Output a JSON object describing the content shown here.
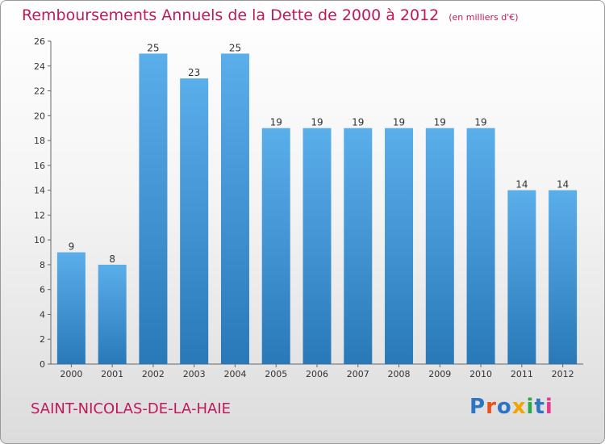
{
  "title": "Remboursements Annuels de la Dette de 2000 à 2012",
  "unit_note": "(en milliers d'€)",
  "commune": "SAINT-NICOLAS-DE-LA-HAIE",
  "logo": {
    "letters": [
      "P",
      "r",
      "o",
      "x",
      "i",
      "t",
      "i"
    ],
    "colors": [
      "#2e74c4",
      "#e8501c",
      "#2e74c4",
      "#f0a500",
      "#2aa84a",
      "#2e74c4",
      "#e23b8a"
    ]
  },
  "colors": {
    "bar_light": "#5aaeea",
    "bar_dark": "#2979b9",
    "title": "#c0185a"
  },
  "chart_data": {
    "type": "bar",
    "categories": [
      "2000",
      "2001",
      "2002",
      "2003",
      "2004",
      "2005",
      "2006",
      "2007",
      "2008",
      "2009",
      "2010",
      "2011",
      "2012"
    ],
    "values": [
      9,
      8,
      25,
      23,
      25,
      19,
      19,
      19,
      19,
      19,
      19,
      14,
      14
    ],
    "labels": [
      "9",
      "8",
      "25",
      "23",
      "25",
      "19",
      "19",
      "19",
      "19",
      "19",
      "19",
      "14",
      "14"
    ],
    "ylim": [
      0,
      26
    ],
    "yticks": [
      0,
      2,
      4,
      6,
      8,
      10,
      12,
      14,
      16,
      18,
      20,
      22,
      24,
      26
    ],
    "grid": false,
    "legend": "none"
  }
}
